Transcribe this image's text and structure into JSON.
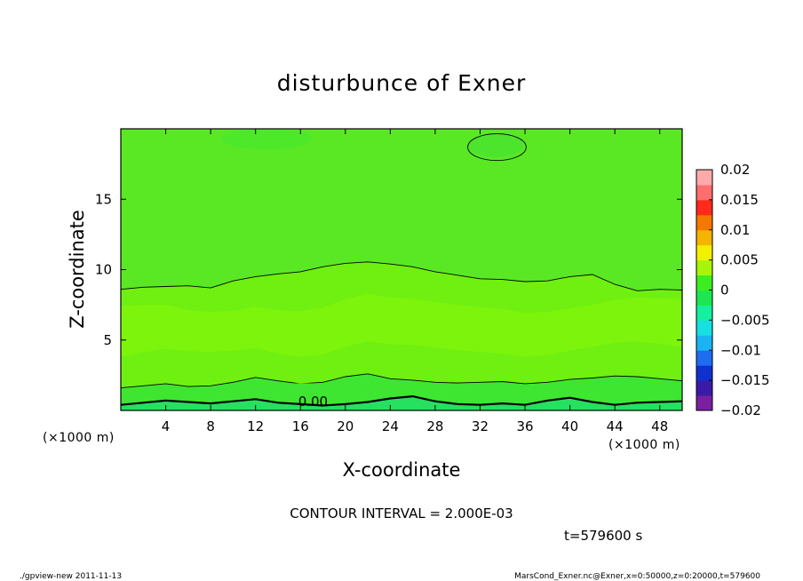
{
  "chart_data": {
    "type": "contour",
    "title": "disturbunce of Exner",
    "xlabel": "X-coordinate",
    "ylabel": "Z-coordinate",
    "x_unit": "(×1000 m)",
    "y_unit": "(×1000 m)",
    "xlim": [
      0,
      50
    ],
    "ylim": [
      0,
      20
    ],
    "x_ticks": [
      "4",
      "8",
      "12",
      "16",
      "20",
      "24",
      "28",
      "32",
      "36",
      "40",
      "44",
      "48"
    ],
    "y_ticks": [
      "5",
      "10",
      "15"
    ],
    "contour_interval_label": "CONTOUR INTERVAL = 2.000E-03",
    "contour_label": "0.00",
    "time_label": "t=579600 s",
    "colorbar": {
      "ticks": [
        "0.02",
        "0.015",
        "0.01",
        "0.005",
        "0",
        "−0.005",
        "−0.01",
        "−0.015",
        "−0.02"
      ],
      "range": [
        -0.02,
        0.02
      ],
      "colors": [
        "#7a1fa0",
        "#3a1aa6",
        "#1030d0",
        "#1e6cf0",
        "#19b4f2",
        "#16e0e0",
        "#14f0a0",
        "#1ee650",
        "#3cee20",
        "#a8f50a",
        "#f2f000",
        "#f5b400",
        "#f57800",
        "#ff2a1a",
        "#ff6e6e",
        "#ffaaaa"
      ]
    },
    "contours": [
      {
        "level": 0.0,
        "z": [
          0.4,
          0.55,
          0.7,
          0.6,
          0.5,
          0.65,
          0.8,
          0.55,
          0.45,
          0.35,
          0.45,
          0.6,
          0.85,
          1.0,
          0.65,
          0.45,
          0.4,
          0.5,
          0.4,
          0.7,
          0.9,
          0.6,
          0.4,
          0.55,
          0.6,
          0.65
        ]
      },
      {
        "level": -0.002,
        "z": [
          1.6,
          1.75,
          1.9,
          1.7,
          1.75,
          2.0,
          2.35,
          2.1,
          1.9,
          2.0,
          2.4,
          2.6,
          2.25,
          2.15,
          2.0,
          1.95,
          2.0,
          2.05,
          1.9,
          2.0,
          2.2,
          2.3,
          2.45,
          2.4,
          2.25,
          2.1
        ]
      },
      {
        "level": 0.002,
        "z": [
          8.6,
          8.75,
          8.8,
          8.85,
          8.7,
          9.2,
          9.5,
          9.7,
          9.85,
          10.2,
          10.45,
          10.55,
          10.4,
          10.2,
          9.85,
          9.6,
          9.35,
          9.3,
          9.15,
          9.2,
          9.5,
          9.65,
          8.95,
          8.5,
          8.6,
          8.55
        ]
      }
    ],
    "features": [
      {
        "type": "closed_contour",
        "center": [
          33.5,
          18.7
        ],
        "radii": [
          2.6,
          0.95
        ]
      }
    ]
  },
  "footer": {
    "left": "./gpview-new   2011-11-13",
    "right": "MarsCond_Exner.nc@Exner,x=0:50000,z=0:20000,t=579600"
  }
}
